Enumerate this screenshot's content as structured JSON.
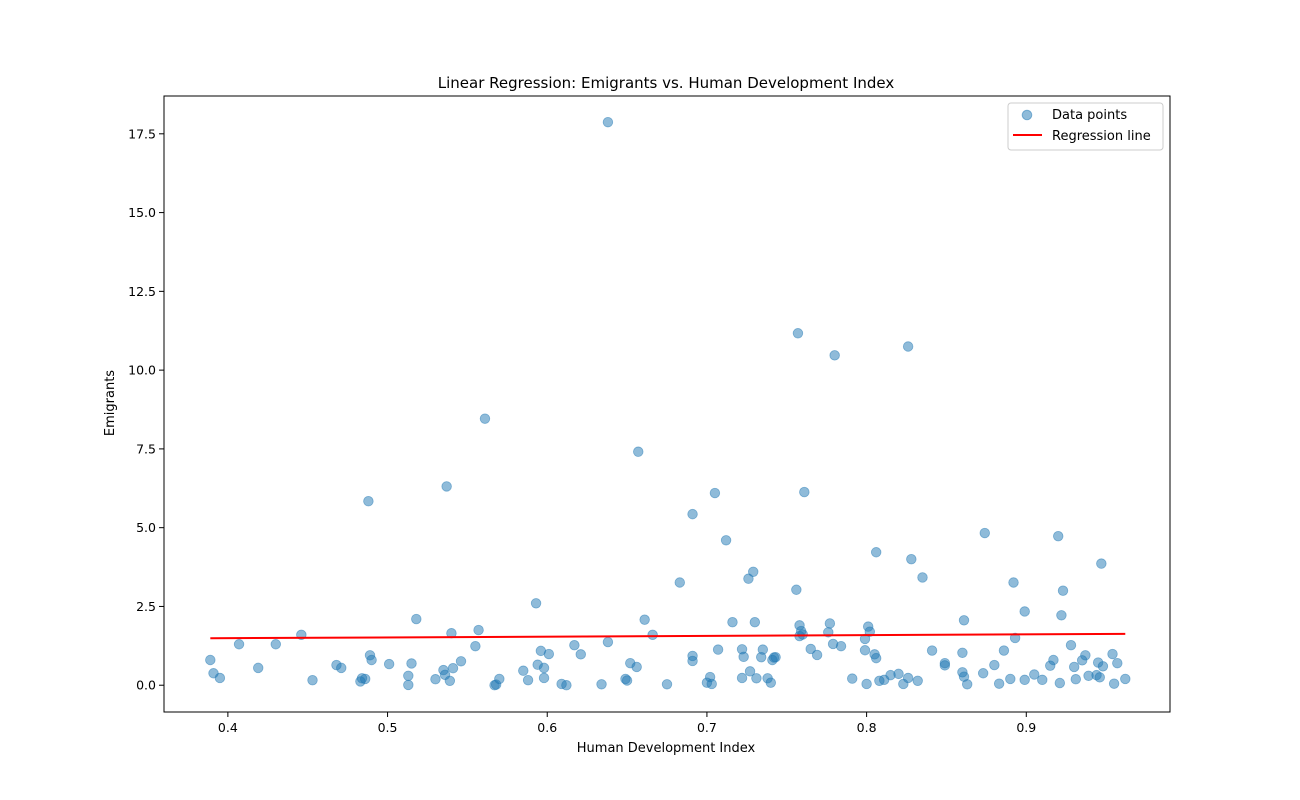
{
  "colors": {
    "points": "#1f77b4",
    "regression": "#ff0000",
    "axes": "#000000",
    "background": "#ffffff"
  },
  "chart_data": {
    "type": "scatter",
    "title": "Linear Regression: Emigrants vs. Human Development Index",
    "xlabel": "Human Development Index",
    "ylabel": "Emigrants",
    "xlim": [
      0.36,
      0.99
    ],
    "ylim": [
      -0.85,
      18.7
    ],
    "xticks": [
      0.4,
      0.5,
      0.6,
      0.7,
      0.8,
      0.9
    ],
    "xtick_labels": [
      "0.4",
      "0.5",
      "0.6",
      "0.7",
      "0.8",
      "0.9"
    ],
    "yticks": [
      0,
      2.5,
      5,
      7.5,
      10,
      12.5,
      15,
      17.5
    ],
    "ytick_labels": [
      "0.0",
      "2.5",
      "5.0",
      "7.5",
      "10.0",
      "12.5",
      "15.0",
      "17.5"
    ],
    "grid": false,
    "legend": {
      "placement": "top-right",
      "entries": [
        {
          "label": "Data points",
          "marker": "circle"
        },
        {
          "label": "Regression line",
          "marker": "line"
        }
      ]
    },
    "series": [
      {
        "name": "Data points",
        "kind": "scatter",
        "points": [
          [
            0.389,
            0.8
          ],
          [
            0.391,
            0.38
          ],
          [
            0.395,
            0.23
          ],
          [
            0.407,
            1.3
          ],
          [
            0.419,
            0.55
          ],
          [
            0.43,
            1.3
          ],
          [
            0.446,
            1.6
          ],
          [
            0.453,
            0.16
          ],
          [
            0.468,
            0.64
          ],
          [
            0.471,
            0.55
          ],
          [
            0.483,
            0.12
          ],
          [
            0.484,
            0.22
          ],
          [
            0.486,
            0.2
          ],
          [
            0.488,
            5.84
          ],
          [
            0.489,
            0.95
          ],
          [
            0.49,
            0.8
          ],
          [
            0.501,
            0.67
          ],
          [
            0.513,
            0.3
          ],
          [
            0.513,
            0.01
          ],
          [
            0.515,
            0.69
          ],
          [
            0.518,
            2.1
          ],
          [
            0.53,
            0.19
          ],
          [
            0.535,
            0.48
          ],
          [
            0.536,
            0.33
          ],
          [
            0.537,
            6.31
          ],
          [
            0.539,
            0.14
          ],
          [
            0.54,
            1.65
          ],
          [
            0.541,
            0.54
          ],
          [
            0.546,
            0.76
          ],
          [
            0.555,
            1.24
          ],
          [
            0.557,
            1.75
          ],
          [
            0.561,
            8.46
          ],
          [
            0.567,
            0.0
          ],
          [
            0.568,
            0.02
          ],
          [
            0.57,
            0.2
          ],
          [
            0.585,
            0.46
          ],
          [
            0.588,
            0.16
          ],
          [
            0.593,
            2.6
          ],
          [
            0.594,
            0.65
          ],
          [
            0.596,
            1.09
          ],
          [
            0.598,
            0.55
          ],
          [
            0.598,
            0.23
          ],
          [
            0.601,
            0.99
          ],
          [
            0.609,
            0.04
          ],
          [
            0.612,
            0.0
          ],
          [
            0.617,
            1.27
          ],
          [
            0.621,
            0.98
          ],
          [
            0.634,
            0.03
          ],
          [
            0.638,
            1.37
          ],
          [
            0.638,
            17.87
          ],
          [
            0.649,
            0.2
          ],
          [
            0.65,
            0.15
          ],
          [
            0.652,
            0.7
          ],
          [
            0.656,
            0.58
          ],
          [
            0.657,
            7.41
          ],
          [
            0.661,
            2.08
          ],
          [
            0.666,
            1.6
          ],
          [
            0.675,
            0.03
          ],
          [
            0.683,
            3.26
          ],
          [
            0.691,
            0.93
          ],
          [
            0.691,
            0.77
          ],
          [
            0.691,
            5.43
          ],
          [
            0.7,
            0.08
          ],
          [
            0.702,
            0.26
          ],
          [
            0.703,
            0.04
          ],
          [
            0.705,
            6.1
          ],
          [
            0.707,
            1.13
          ],
          [
            0.712,
            4.6
          ],
          [
            0.716,
            2.0
          ],
          [
            0.722,
            0.23
          ],
          [
            0.722,
            1.14
          ],
          [
            0.723,
            0.9
          ],
          [
            0.726,
            3.38
          ],
          [
            0.727,
            0.44
          ],
          [
            0.729,
            3.6
          ],
          [
            0.73,
            2.0
          ],
          [
            0.731,
            0.22
          ],
          [
            0.734,
            0.89
          ],
          [
            0.735,
            1.13
          ],
          [
            0.738,
            0.22
          ],
          [
            0.74,
            0.08
          ],
          [
            0.741,
            0.8
          ],
          [
            0.742,
            0.88
          ],
          [
            0.743,
            0.89
          ],
          [
            0.756,
            3.03
          ],
          [
            0.757,
            11.17
          ],
          [
            0.758,
            1.9
          ],
          [
            0.758,
            1.56
          ],
          [
            0.759,
            1.72
          ],
          [
            0.76,
            1.61
          ],
          [
            0.761,
            6.13
          ],
          [
            0.765,
            1.15
          ],
          [
            0.769,
            0.96
          ],
          [
            0.776,
            1.68
          ],
          [
            0.777,
            1.96
          ],
          [
            0.779,
            1.31
          ],
          [
            0.78,
            10.47
          ],
          [
            0.784,
            1.24
          ],
          [
            0.791,
            0.21
          ],
          [
            0.799,
            1.47
          ],
          [
            0.799,
            1.11
          ],
          [
            0.8,
            0.04
          ],
          [
            0.801,
            1.86
          ],
          [
            0.802,
            1.7
          ],
          [
            0.805,
            0.98
          ],
          [
            0.806,
            0.86
          ],
          [
            0.806,
            4.22
          ],
          [
            0.808,
            0.14
          ],
          [
            0.811,
            0.17
          ],
          [
            0.815,
            0.32
          ],
          [
            0.82,
            0.36
          ],
          [
            0.823,
            0.04
          ],
          [
            0.826,
            10.75
          ],
          [
            0.826,
            0.23
          ],
          [
            0.828,
            4.0
          ],
          [
            0.832,
            0.14
          ],
          [
            0.835,
            3.42
          ],
          [
            0.841,
            1.1
          ],
          [
            0.849,
            0.7
          ],
          [
            0.849,
            0.63
          ],
          [
            0.86,
            1.03
          ],
          [
            0.86,
            0.41
          ],
          [
            0.861,
            2.06
          ],
          [
            0.861,
            0.27
          ],
          [
            0.863,
            0.03
          ],
          [
            0.873,
            0.38
          ],
          [
            0.874,
            4.83
          ],
          [
            0.88,
            0.64
          ],
          [
            0.883,
            0.05
          ],
          [
            0.886,
            1.1
          ],
          [
            0.89,
            0.2
          ],
          [
            0.892,
            3.26
          ],
          [
            0.893,
            1.5
          ],
          [
            0.899,
            2.34
          ],
          [
            0.899,
            0.17
          ],
          [
            0.905,
            0.34
          ],
          [
            0.91,
            0.17
          ],
          [
            0.915,
            0.62
          ],
          [
            0.917,
            0.8
          ],
          [
            0.92,
            4.73
          ],
          [
            0.921,
            0.07
          ],
          [
            0.922,
            2.22
          ],
          [
            0.923,
            3.0
          ],
          [
            0.928,
            1.27
          ],
          [
            0.93,
            0.58
          ],
          [
            0.931,
            0.19
          ],
          [
            0.935,
            0.79
          ],
          [
            0.937,
            0.95
          ],
          [
            0.939,
            0.3
          ],
          [
            0.944,
            0.32
          ],
          [
            0.945,
            0.72
          ],
          [
            0.946,
            0.25
          ],
          [
            0.947,
            3.86
          ],
          [
            0.948,
            0.6
          ],
          [
            0.954,
            0.99
          ],
          [
            0.955,
            0.05
          ],
          [
            0.957,
            0.7
          ],
          [
            0.962,
            0.2
          ]
        ]
      },
      {
        "name": "Regression line",
        "kind": "line",
        "x": [
          0.389,
          0.962
        ],
        "y": [
          1.49,
          1.63
        ]
      }
    ]
  }
}
